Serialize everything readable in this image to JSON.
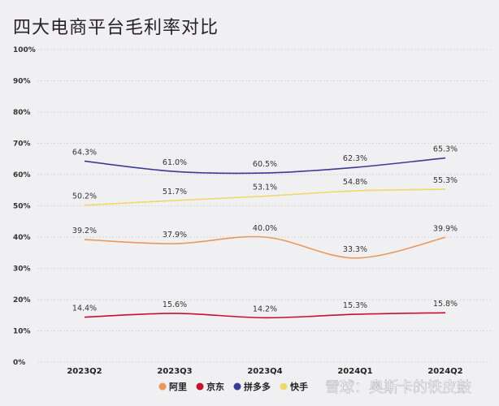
{
  "chart_data": {
    "type": "line",
    "title": "四大电商平台毛利率对比",
    "categories": [
      "2023Q2",
      "2023Q3",
      "2023Q4",
      "2024Q1",
      "2024Q2"
    ],
    "ylim": [
      0,
      100
    ],
    "yticks": [
      "0%",
      "10%",
      "20%",
      "30%",
      "40%",
      "50%",
      "60%",
      "70%",
      "80%",
      "90%",
      "100%"
    ],
    "grid": true,
    "legend_position": "bottom",
    "series": [
      {
        "name": "阿里",
        "color": "#E8995A",
        "values": [
          39.2,
          37.9,
          40.0,
          33.3,
          39.9
        ],
        "labels": [
          "39.2%",
          "37.9%",
          "40.0%",
          "33.3%",
          "39.9%"
        ]
      },
      {
        "name": "京东",
        "color": "#C8102E",
        "values": [
          14.4,
          15.6,
          14.2,
          15.3,
          15.8
        ],
        "labels": [
          "14.4%",
          "15.6%",
          "14.2%",
          "15.3%",
          "15.8%"
        ]
      },
      {
        "name": "拼多多",
        "color": "#3B3B96",
        "values": [
          64.3,
          61.0,
          60.5,
          62.3,
          65.3
        ],
        "labels": [
          "64.3%",
          "61.0%",
          "60.5%",
          "62.3%",
          "65.3%"
        ]
      },
      {
        "name": "快手",
        "color": "#F2D66E",
        "values": [
          50.2,
          51.7,
          53.1,
          54.8,
          55.3
        ],
        "labels": [
          "50.2%",
          "51.7%",
          "53.1%",
          "54.8%",
          "55.3%"
        ]
      }
    ]
  },
  "watermark": "雪球：奥斯卡的铁皮鼓"
}
